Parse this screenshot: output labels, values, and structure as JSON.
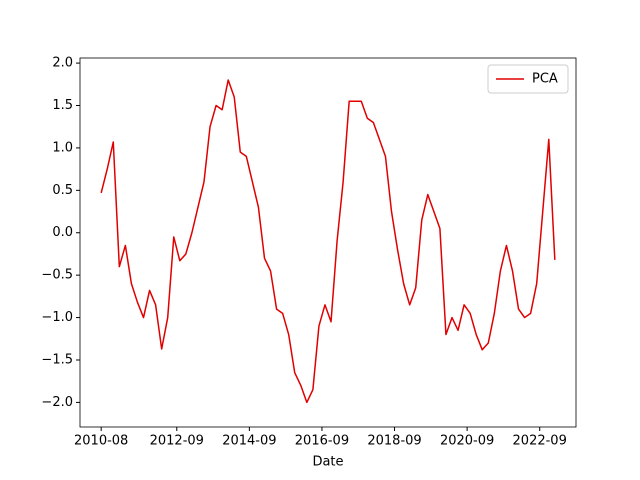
{
  "chart_data": {
    "type": "line",
    "xlabel": "Date",
    "x": [
      "2010-08",
      "2010-10",
      "2010-12",
      "2011-02",
      "2011-04",
      "2011-06",
      "2011-08",
      "2011-10",
      "2011-12",
      "2012-02",
      "2012-04",
      "2012-06",
      "2012-08",
      "2012-10",
      "2012-12",
      "2013-02",
      "2013-04",
      "2013-06",
      "2013-08",
      "2013-10",
      "2013-12",
      "2014-02",
      "2014-04",
      "2014-06",
      "2014-08",
      "2014-10",
      "2014-12",
      "2015-02",
      "2015-04",
      "2015-06",
      "2015-08",
      "2015-10",
      "2015-12",
      "2016-02",
      "2016-04",
      "2016-06",
      "2016-08",
      "2016-10",
      "2016-12",
      "2017-02",
      "2017-04",
      "2017-06",
      "2017-08",
      "2017-10",
      "2017-12",
      "2018-02",
      "2018-04",
      "2018-06",
      "2018-08",
      "2018-10",
      "2018-12",
      "2019-02",
      "2019-04",
      "2019-06",
      "2019-08",
      "2019-10",
      "2019-12",
      "2020-02",
      "2020-04",
      "2020-06",
      "2020-08",
      "2020-10",
      "2020-12",
      "2021-02",
      "2021-04",
      "2021-06",
      "2021-08",
      "2021-10",
      "2021-12",
      "2022-02",
      "2022-04",
      "2022-06",
      "2022-08",
      "2022-10",
      "2022-12",
      "2023-02"
    ],
    "series": [
      {
        "name": "PCA",
        "color": "#e00000",
        "values": [
          0.47,
          0.75,
          1.07,
          -0.4,
          -0.15,
          -0.6,
          -0.82,
          -1.0,
          -0.68,
          -0.85,
          -1.37,
          -1.0,
          -0.05,
          -0.33,
          -0.25,
          0.0,
          0.3,
          0.6,
          1.25,
          1.5,
          1.45,
          1.8,
          1.6,
          0.95,
          0.9,
          0.6,
          0.3,
          -0.3,
          -0.45,
          -0.9,
          -0.95,
          -1.2,
          -1.65,
          -1.8,
          -2.0,
          -1.85,
          -1.1,
          -0.85,
          -1.05,
          -0.1,
          0.6,
          1.55,
          1.55,
          1.55,
          1.35,
          1.3,
          1.1,
          0.9,
          0.25,
          -0.2,
          -0.6,
          -0.85,
          -0.65,
          0.15,
          0.45,
          0.25,
          0.05,
          -1.2,
          -1.0,
          -1.15,
          -0.85,
          -0.95,
          -1.2,
          -1.38,
          -1.3,
          -0.95,
          -0.45,
          -0.15,
          -0.45,
          -0.9,
          -1.0,
          -0.95,
          -0.6,
          0.25,
          1.1,
          -0.32
        ]
      }
    ],
    "xlim": [
      "2010-01",
      "2023-09"
    ],
    "xticks": [
      "2010-08",
      "2012-09",
      "2014-09",
      "2016-09",
      "2018-09",
      "2020-09",
      "2022-09"
    ],
    "ylim": [
      -2.29,
      2.06
    ],
    "yticks": [
      {
        "value": -2.0,
        "label": "−2.0"
      },
      {
        "value": -1.5,
        "label": "−1.5"
      },
      {
        "value": -1.0,
        "label": "−1.0"
      },
      {
        "value": -0.5,
        "label": "−0.5"
      },
      {
        "value": 0.0,
        "label": "0.0"
      },
      {
        "value": 0.5,
        "label": "0.5"
      },
      {
        "value": 1.0,
        "label": "1.0"
      },
      {
        "value": 1.5,
        "label": "1.5"
      },
      {
        "value": 2.0,
        "label": "2.0"
      }
    ],
    "legend": "upper right"
  }
}
